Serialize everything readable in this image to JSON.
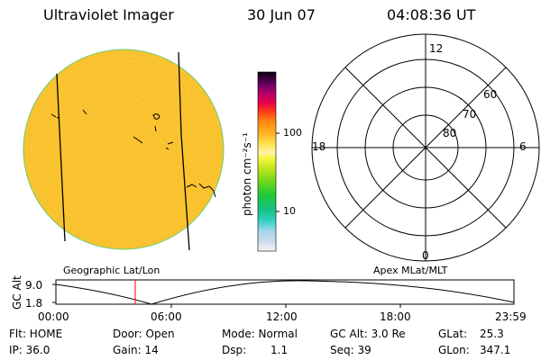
{
  "header": {
    "instrument": "Ultraviolet Imager",
    "date": "30 Jun 07",
    "time": "04:08:36 UT"
  },
  "colorbar": {
    "unit_label": "photon cm⁻²s⁻¹",
    "ticks": [
      "100",
      "10"
    ]
  },
  "polar_plot": {
    "mlt_labels": [
      "12",
      "18",
      "6",
      "0"
    ],
    "mlat_labels": [
      "60",
      "70",
      "80"
    ]
  },
  "panels": {
    "left_caption": "Geographic Lat/Lon",
    "right_caption": "Apex MLat/MLT"
  },
  "altitude_plot": {
    "ylabel": "GC Alt",
    "y_ticks": [
      "9.0",
      "1.8"
    ],
    "x_ticks": [
      "00:00",
      "06:00",
      "12:00",
      "18:00",
      "23:59"
    ]
  },
  "status": {
    "filter": "Flt: HOME",
    "door": "Door: Open",
    "mode": "Mode: Normal",
    "gc_alt": "GC Alt: 3.0 Re",
    "glat_label": "GLat:",
    "glat_value": "25.3",
    "ip": "IP: 36.0",
    "gain": "Gain: 14",
    "dsp_label": "Dsp:",
    "dsp_value": "1.1",
    "seq": "Seq: 39",
    "glon_label": "GLon:",
    "glon_value": "347.1"
  },
  "colors": {
    "earth_disk": "#f5b81e",
    "disk_edge": "#6ccf74",
    "time_marker": "#ff0000"
  }
}
